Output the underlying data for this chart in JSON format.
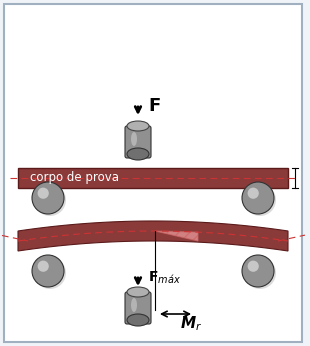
{
  "bg_color": "#f0f4f8",
  "border_color": "#a0b0c0",
  "bar_color": "#8B3A3A",
  "bar_edge_color": "#5a1a1a",
  "dashed_color": "#cc3333",
  "indenter_body_color_top": "#c0c0c0",
  "indenter_body_color_bot": "#505050",
  "ball_color_top": "#a0a0a0",
  "ball_color_bot": "#404040",
  "hatch_color": "#e08080",
  "arrow_color": "#000000",
  "text_color": "#000000",
  "label_F": "F",
  "label_Fmax": "F$_{máx}$",
  "label_corpo": "corpo de prova",
  "label_Mr": "M$_r$",
  "fig_width": 3.1,
  "fig_height": 3.46
}
